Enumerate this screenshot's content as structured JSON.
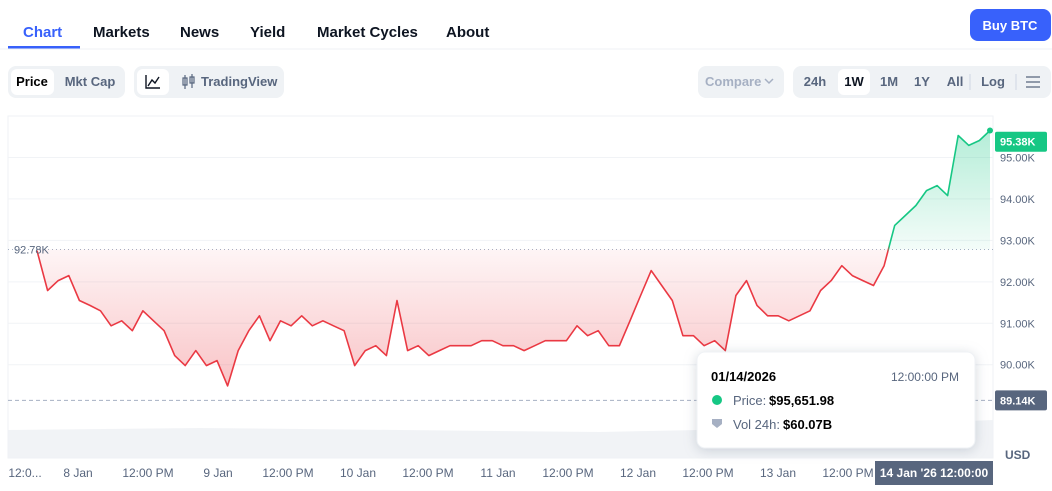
{
  "nav": {
    "tabs": [
      "Chart",
      "Markets",
      "News",
      "Yield",
      "Market Cycles",
      "About"
    ],
    "button": "Buy BTC"
  },
  "toolbar": {
    "modes": [
      "Price",
      "Mkt Cap"
    ],
    "tradingview": "TradingView",
    "compare": "Compare",
    "ranges": [
      "24h",
      "1W",
      "1M",
      "1Y",
      "All"
    ],
    "log": "Log"
  },
  "chart_data": {
    "type": "line",
    "values": [
      92750,
      91790,
      92030,
      92150,
      91550,
      91430,
      91300,
      90940,
      91060,
      90820,
      91300,
      91060,
      90820,
      90220,
      89980,
      90340,
      89980,
      90100,
      89490,
      90340,
      90820,
      91180,
      90580,
      91060,
      90940,
      91180,
      90940,
      91060,
      90940,
      90820,
      89980,
      90340,
      90460,
      90220,
      91550,
      90340,
      90460,
      90220,
      90340,
      90460,
      90460,
      90460,
      90580,
      90580,
      90460,
      90460,
      90340,
      90460,
      90580,
      90580,
      90580,
      90940,
      90700,
      90820,
      90460,
      90460,
      91060,
      91670,
      92270,
      91910,
      91550,
      90700,
      90700,
      90460,
      90580,
      90340,
      91670,
      92030,
      91430,
      91180,
      91180,
      91060,
      91180,
      91300,
      91790,
      92030,
      92390,
      92150,
      92030,
      91910,
      92390,
      93360,
      93600,
      93840,
      94200,
      94320,
      94080,
      95530,
      95290,
      95410,
      95650
    ],
    "color_up": "#16c784",
    "color_down": "#ea3943",
    "baseline": {
      "value": 92780,
      "label": "92.78K"
    },
    "last_price": {
      "value": 95380,
      "label": "95.38K"
    },
    "crosshair": {
      "value": 89140,
      "label": "89.14K"
    },
    "crosshair_time": "14 Jan '26 12:00:00",
    "ylim": [
      87750,
      96000
    ],
    "yticks": [
      {
        "value": 90000,
        "label": "90.00K"
      },
      {
        "value": 91000,
        "label": "91.00K"
      },
      {
        "value": 92000,
        "label": "92.00K"
      },
      {
        "value": 93000,
        "label": "93.00K"
      },
      {
        "value": 94000,
        "label": "94.00K"
      },
      {
        "value": 95000,
        "label": "95.00K"
      }
    ],
    "xtick_labels": [
      "12:0...",
      "8 Jan",
      "12:00 PM",
      "9 Jan",
      "12:00 PM",
      "10 Jan",
      "12:00 PM",
      "11 Jan",
      "12:00 PM",
      "12 Jan",
      "12:00 PM",
      "13 Jan",
      "12:00 PM"
    ],
    "unit": "USD",
    "grid": true
  },
  "tooltip": {
    "date": "01/14/2026",
    "time": "12:00:00 PM",
    "price_label": "Price:",
    "price": "$95,651.98",
    "volume_label": "Vol 24h:",
    "volume": "$60.07B"
  }
}
